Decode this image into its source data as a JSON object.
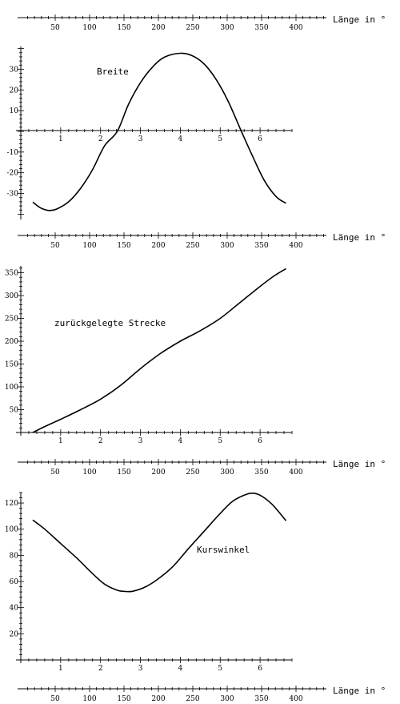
{
  "longitude_axis": {
    "label": "Länge in °",
    "ticks": [
      50,
      100,
      150,
      200,
      250,
      300,
      350,
      400
    ]
  },
  "chart_data": [
    {
      "type": "line",
      "annotation": "Breite",
      "xlim": [
        0,
        6.8
      ],
      "ylim": [
        -41,
        41
      ],
      "x_ticks": [
        1,
        2,
        3,
        4,
        5,
        6
      ],
      "y_ticks": [
        -30,
        -20,
        -10,
        10,
        20,
        30
      ],
      "points": [
        [
          0.3,
          -34.2
        ],
        [
          0.5,
          -37
        ],
        [
          0.7,
          -38.2
        ],
        [
          0.9,
          -37.5
        ],
        [
          1.2,
          -34
        ],
        [
          1.5,
          -27.5
        ],
        [
          1.8,
          -18.5
        ],
        [
          2.1,
          -7
        ],
        [
          2.42,
          0
        ],
        [
          2.7,
          13
        ],
        [
          3.0,
          23.5
        ],
        [
          3.3,
          31
        ],
        [
          3.6,
          35.8
        ],
        [
          4.0,
          37.7
        ],
        [
          4.3,
          36.5
        ],
        [
          4.6,
          32.5
        ],
        [
          4.9,
          25
        ],
        [
          5.2,
          14.5
        ],
        [
          5.53,
          0
        ],
        [
          5.8,
          -11.5
        ],
        [
          6.1,
          -23.5
        ],
        [
          6.4,
          -31.5
        ],
        [
          6.65,
          -34.7
        ]
      ]
    },
    {
      "type": "line",
      "annotation": "zurückgelegte Strecke",
      "xlim": [
        0,
        6.8
      ],
      "ylim": [
        0,
        365
      ],
      "x_ticks": [
        1,
        2,
        3,
        4,
        5,
        6
      ],
      "y_ticks": [
        50,
        100,
        150,
        200,
        250,
        300,
        350
      ],
      "points": [
        [
          0.3,
          0
        ],
        [
          0.6,
          13
        ],
        [
          1.0,
          29
        ],
        [
          1.5,
          50
        ],
        [
          2.0,
          73
        ],
        [
          2.5,
          103
        ],
        [
          3.0,
          140
        ],
        [
          3.5,
          173
        ],
        [
          4.0,
          200
        ],
        [
          4.5,
          223
        ],
        [
          5.0,
          250
        ],
        [
          5.5,
          285
        ],
        [
          6.0,
          320
        ],
        [
          6.35,
          343
        ],
        [
          6.65,
          359
        ]
      ]
    },
    {
      "type": "line",
      "annotation": "Kurswinkel",
      "xlim": [
        0,
        6.8
      ],
      "ylim": [
        0,
        128
      ],
      "x_ticks": [
        1,
        2,
        3,
        4,
        5,
        6
      ],
      "y_ticks": [
        20,
        40,
        60,
        80,
        100,
        120
      ],
      "points": [
        [
          0.3,
          107
        ],
        [
          0.6,
          100
        ],
        [
          1.0,
          89
        ],
        [
          1.4,
          78
        ],
        [
          1.8,
          66
        ],
        [
          2.1,
          58
        ],
        [
          2.4,
          53.5
        ],
        [
          2.6,
          52.4
        ],
        [
          2.8,
          52.5
        ],
        [
          3.1,
          55.5
        ],
        [
          3.4,
          61
        ],
        [
          3.8,
          71
        ],
        [
          4.2,
          85
        ],
        [
          4.6,
          98.5
        ],
        [
          5.0,
          112
        ],
        [
          5.3,
          121
        ],
        [
          5.6,
          126
        ],
        [
          5.8,
          127.5
        ],
        [
          6.0,
          126
        ],
        [
          6.3,
          119
        ],
        [
          6.65,
          106.5
        ]
      ]
    }
  ]
}
